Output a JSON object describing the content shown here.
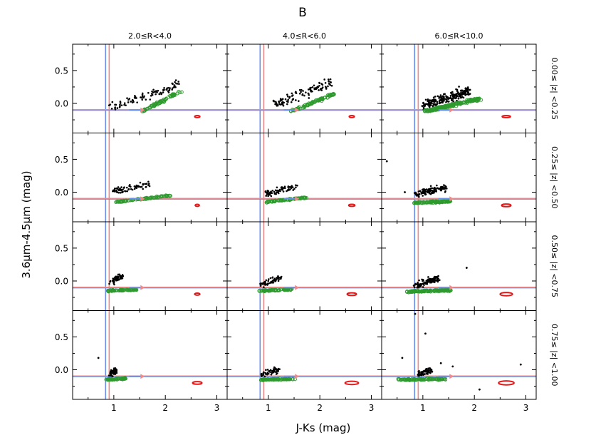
{
  "chart_data": {
    "type": "scatter",
    "title": "B",
    "xlabel": "J-Ks (mag)",
    "ylabel": "3.6μm-4.5μm (mag)",
    "xlim": [
      0.2,
      3.2
    ],
    "ylim": [
      -0.45,
      0.9
    ],
    "x_ticks": [
      "1",
      "2",
      "3"
    ],
    "x_tick_values": [
      1,
      2,
      3
    ],
    "y_ticks": [
      "0.5",
      "0.0"
    ],
    "y_tick_values": [
      0.5,
      0.0
    ],
    "col_titles": [
      "2.0≤R<4.0",
      "4.0≤R<6.0",
      "6.0≤R<10.0"
    ],
    "row_titles": [
      "0.00≤ |z| <0.25",
      "0.25≤ |z| <0.50",
      "0.50≤ |z| <0.75",
      "0.75≤ |z| <1.00"
    ],
    "reference_lines": {
      "vertical": [
        {
          "x": 0.84,
          "color": "#6a8fe8"
        },
        {
          "x": 0.91,
          "color": "#ef8a8a"
        }
      ],
      "horizontal": [
        {
          "y": -0.1,
          "color": "#6a8fe8"
        },
        {
          "y": -0.1,
          "color": "#ef8a8a"
        }
      ]
    },
    "arrow": {
      "from_x": 1.3,
      "to_x": 1.6,
      "y": -0.1,
      "colors": [
        "#6a8fe8",
        "#ef8a8a"
      ]
    },
    "series_names": [
      "selected stars (black)",
      "other stars (green open circles)",
      "mean error ellipse (red)"
    ],
    "panels": [
      {
        "row": 0,
        "col": 0,
        "ellipse": {
          "x": 2.62,
          "y": -0.2,
          "rx": 0.05,
          "ry": 0.01
        },
        "clusters": [
          {
            "kind": "black",
            "n": 95,
            "x0": 0.95,
            "x1": 2.25,
            "y0": -0.06,
            "y1": 0.28,
            "spread": 0.09
          },
          {
            "kind": "green",
            "n": 75,
            "x0": 1.55,
            "x1": 2.3,
            "y0": -0.12,
            "y1": 0.18,
            "spread": 0.03
          }
        ]
      },
      {
        "row": 0,
        "col": 1,
        "ellipse": {
          "x": 2.62,
          "y": -0.2,
          "rx": 0.05,
          "ry": 0.01
        },
        "clusters": [
          {
            "kind": "black",
            "n": 110,
            "x0": 1.1,
            "x1": 2.25,
            "y0": -0.02,
            "y1": 0.32,
            "spread": 0.1
          },
          {
            "kind": "green",
            "n": 90,
            "x0": 1.45,
            "x1": 2.3,
            "y0": -0.12,
            "y1": 0.15,
            "spread": 0.03
          }
        ]
      },
      {
        "row": 0,
        "col": 2,
        "ellipse": {
          "x": 2.62,
          "y": -0.2,
          "rx": 0.08,
          "ry": 0.015
        },
        "clusters": [
          {
            "kind": "black",
            "n": 230,
            "x0": 1.0,
            "x1": 1.9,
            "y0": -0.05,
            "y1": 0.2,
            "spread": 0.11
          },
          {
            "kind": "green",
            "n": 200,
            "x0": 1.05,
            "x1": 2.1,
            "y0": -0.12,
            "y1": 0.07,
            "spread": 0.04
          }
        ]
      },
      {
        "row": 1,
        "col": 0,
        "ellipse": {
          "x": 2.62,
          "y": -0.2,
          "rx": 0.04,
          "ry": 0.01
        },
        "clusters": [
          {
            "kind": "black",
            "n": 70,
            "x0": 0.95,
            "x1": 1.7,
            "y0": 0.0,
            "y1": 0.12,
            "spread": 0.07
          },
          {
            "kind": "green",
            "n": 85,
            "x0": 1.05,
            "x1": 2.1,
            "y0": -0.15,
            "y1": -0.05,
            "spread": 0.02
          }
        ]
      },
      {
        "row": 1,
        "col": 1,
        "ellipse": {
          "x": 2.62,
          "y": -0.2,
          "rx": 0.06,
          "ry": 0.012
        },
        "clusters": [
          {
            "kind": "black",
            "n": 70,
            "x0": 0.95,
            "x1": 1.55,
            "y0": -0.02,
            "y1": 0.08,
            "spread": 0.07
          },
          {
            "kind": "green",
            "n": 90,
            "x0": 0.95,
            "x1": 1.75,
            "y0": -0.15,
            "y1": -0.08,
            "spread": 0.02
          }
        ]
      },
      {
        "row": 1,
        "col": 2,
        "ellipse": {
          "x": 2.62,
          "y": -0.2,
          "rx": 0.09,
          "ry": 0.02
        },
        "clusters": [
          {
            "kind": "black",
            "n": 120,
            "x0": 0.85,
            "x1": 1.45,
            "y0": -0.03,
            "y1": 0.07,
            "spread": 0.07
          },
          {
            "kind": "green",
            "n": 120,
            "x0": 0.85,
            "x1": 1.55,
            "y0": -0.16,
            "y1": -0.14,
            "spread": 0.025
          }
        ],
        "outliers": [
          {
            "x": 0.3,
            "y": 0.47
          },
          {
            "x": 0.65,
            "y": 0.0
          }
        ]
      },
      {
        "row": 2,
        "col": 0,
        "ellipse": {
          "x": 2.62,
          "y": -0.2,
          "rx": 0.05,
          "ry": 0.012
        },
        "clusters": [
          {
            "kind": "black",
            "n": 55,
            "x0": 0.95,
            "x1": 1.15,
            "y0": -0.02,
            "y1": 0.08,
            "spread": 0.06
          },
          {
            "kind": "green",
            "n": 75,
            "x0": 0.9,
            "x1": 1.45,
            "y0": -0.15,
            "y1": -0.13,
            "spread": 0.02
          }
        ]
      },
      {
        "row": 2,
        "col": 1,
        "ellipse": {
          "x": 2.62,
          "y": -0.2,
          "rx": 0.09,
          "ry": 0.02
        },
        "clusters": [
          {
            "kind": "black",
            "n": 55,
            "x0": 0.85,
            "x1": 1.25,
            "y0": -0.05,
            "y1": 0.06,
            "spread": 0.07
          },
          {
            "kind": "green",
            "n": 80,
            "x0": 0.85,
            "x1": 1.45,
            "y0": -0.15,
            "y1": -0.13,
            "spread": 0.02
          }
        ]
      },
      {
        "row": 2,
        "col": 2,
        "ellipse": {
          "x": 2.62,
          "y": -0.2,
          "rx": 0.12,
          "ry": 0.025
        },
        "clusters": [
          {
            "kind": "black",
            "n": 110,
            "x0": 0.85,
            "x1": 1.3,
            "y0": -0.06,
            "y1": 0.04,
            "spread": 0.07
          },
          {
            "kind": "green",
            "n": 130,
            "x0": 0.7,
            "x1": 1.55,
            "y0": -0.16,
            "y1": -0.14,
            "spread": 0.025
          }
        ],
        "outliers": [
          {
            "x": 1.85,
            "y": 0.2
          }
        ]
      },
      {
        "row": 3,
        "col": 0,
        "ellipse": {
          "x": 2.62,
          "y": -0.2,
          "rx": 0.09,
          "ry": 0.02
        },
        "clusters": [
          {
            "kind": "black",
            "n": 55,
            "x0": 0.95,
            "x1": 1.05,
            "y0": -0.06,
            "y1": 0.0,
            "spread": 0.06
          },
          {
            "kind": "green",
            "n": 60,
            "x0": 0.85,
            "x1": 1.25,
            "y0": -0.15,
            "y1": -0.13,
            "spread": 0.02
          }
        ],
        "outliers": [
          {
            "x": 0.7,
            "y": 0.18
          }
        ]
      },
      {
        "row": 3,
        "col": 1,
        "ellipse": {
          "x": 2.62,
          "y": -0.2,
          "rx": 0.13,
          "ry": 0.025
        },
        "clusters": [
          {
            "kind": "black",
            "n": 55,
            "x0": 0.85,
            "x1": 1.2,
            "y0": -0.07,
            "y1": 0.0,
            "spread": 0.06
          },
          {
            "kind": "green",
            "n": 75,
            "x0": 0.85,
            "x1": 1.5,
            "y0": -0.15,
            "y1": -0.14,
            "spread": 0.02
          }
        ]
      },
      {
        "row": 3,
        "col": 2,
        "ellipse": {
          "x": 2.62,
          "y": -0.2,
          "rx": 0.15,
          "ry": 0.03
        },
        "clusters": [
          {
            "kind": "black",
            "n": 70,
            "x0": 0.9,
            "x1": 1.2,
            "y0": -0.06,
            "y1": 0.0,
            "spread": 0.06
          },
          {
            "kind": "green",
            "n": 110,
            "x0": 0.55,
            "x1": 1.45,
            "y0": -0.15,
            "y1": -0.14,
            "spread": 0.025
          }
        ],
        "outliers": [
          {
            "x": 0.85,
            "y": 0.85
          },
          {
            "x": 1.05,
            "y": 0.55
          },
          {
            "x": 0.6,
            "y": 0.18
          },
          {
            "x": 1.35,
            "y": 0.1
          },
          {
            "x": 1.58,
            "y": 0.05
          },
          {
            "x": 2.9,
            "y": 0.08
          },
          {
            "x": 2.1,
            "y": -0.3
          }
        ]
      }
    ]
  }
}
